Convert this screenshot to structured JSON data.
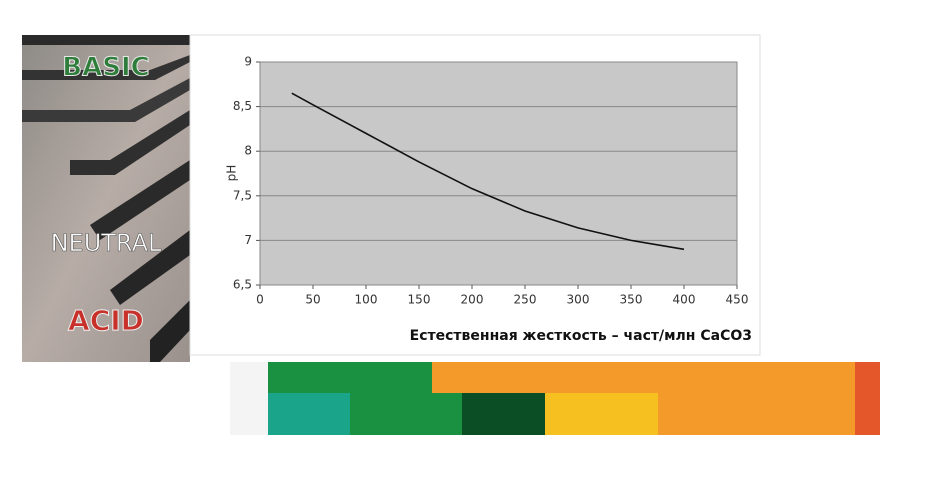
{
  "chart_data": {
    "type": "line",
    "x": [
      30,
      50,
      100,
      150,
      200,
      250,
      300,
      350,
      400
    ],
    "values": [
      8.65,
      8.52,
      8.2,
      7.88,
      7.58,
      7.33,
      7.14,
      7.0,
      6.9
    ],
    "color": "#111111",
    "x_label": "Естественная жесткость – част/млн  CaCO3",
    "y_label": "pH",
    "xlim": [
      0,
      450
    ],
    "xticks": [
      0,
      50,
      100,
      150,
      200,
      250,
      300,
      350,
      400,
      450
    ],
    "ylim": [
      6.5,
      9
    ],
    "yticks": [
      {
        "value": 6.5,
        "label": "6,5"
      },
      7,
      {
        "value": 7.5,
        "label": "7,5"
      },
      8,
      {
        "value": 8.5,
        "label": "8,5"
      },
      9
    ],
    "grid": true
  },
  "image_labels": [
    "BASIC",
    "NEUTRAL",
    "ACID"
  ]
}
